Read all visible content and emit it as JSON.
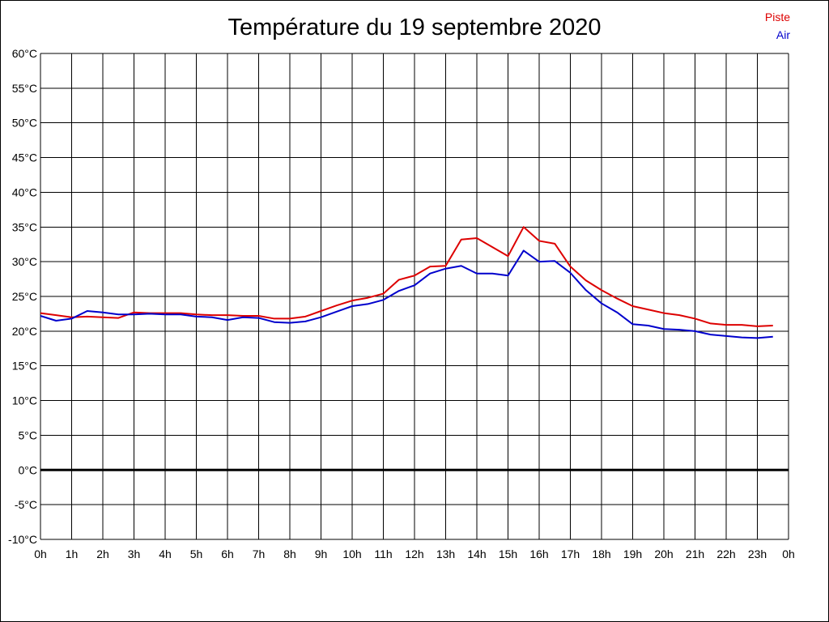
{
  "chart_data": {
    "type": "line",
    "title": "Température du 19 septembre 2020",
    "ylim": [
      -10,
      60
    ],
    "y_ticks": [
      "60°C",
      "55°C",
      "50°C",
      "45°C",
      "40°C",
      "35°C",
      "30°C",
      "25°C",
      "20°C",
      "15°C",
      "10°C",
      "5°C",
      "0°C",
      "-5°C",
      "-10°C"
    ],
    "x_ticks": [
      "0h",
      "1h",
      "2h",
      "3h",
      "4h",
      "5h",
      "6h",
      "7h",
      "8h",
      "9h",
      "10h",
      "11h",
      "12h",
      "13h",
      "14h",
      "15h",
      "16h",
      "17h",
      "18h",
      "19h",
      "20h",
      "21h",
      "22h",
      "23h",
      "0h"
    ],
    "grid": true,
    "legend_placement": "top-right",
    "x_hours": [
      0,
      0.5,
      1,
      1.5,
      2,
      2.5,
      3,
      3.5,
      4,
      4.5,
      5,
      5.5,
      6,
      6.5,
      7,
      7.5,
      8,
      8.5,
      9,
      9.5,
      10,
      10.5,
      11,
      11.5,
      12,
      12.5,
      13,
      13.5,
      14,
      14.5,
      15,
      15.5,
      16,
      16.5,
      17,
      17.5,
      18,
      18.5,
      19,
      19.5,
      20,
      20.5,
      21,
      21.5,
      22,
      22.5,
      23,
      23.5
    ],
    "series": [
      {
        "name": "Piste",
        "color": "#dd0000",
        "values": [
          22.6,
          22.3,
          22.0,
          22.1,
          22.0,
          21.9,
          22.7,
          22.6,
          22.6,
          22.6,
          22.4,
          22.3,
          22.3,
          22.2,
          22.2,
          21.8,
          21.8,
          22.1,
          22.9,
          23.7,
          24.4,
          24.8,
          25.4,
          27.4,
          28.0,
          29.3,
          29.4,
          33.2,
          33.4,
          32.1,
          30.8,
          35.0,
          33.0,
          32.6,
          29.3,
          27.3,
          25.9,
          24.7,
          23.6,
          23.1,
          22.6,
          22.3,
          21.8,
          21.1,
          20.9,
          20.9,
          20.7,
          20.8
        ]
      },
      {
        "name": "Air",
        "color": "#0000cc",
        "values": [
          22.2,
          21.5,
          21.8,
          22.9,
          22.7,
          22.4,
          22.4,
          22.5,
          22.4,
          22.4,
          22.1,
          22.0,
          21.6,
          22.0,
          21.9,
          21.3,
          21.2,
          21.4,
          22.0,
          22.8,
          23.6,
          23.9,
          24.5,
          25.8,
          26.6,
          28.3,
          29.0,
          29.4,
          28.3,
          28.3,
          28.0,
          31.6,
          30.0,
          30.1,
          28.4,
          25.9,
          24.0,
          22.7,
          21.0,
          20.8,
          20.3,
          20.2,
          20.0,
          19.5,
          19.3,
          19.1,
          19.0,
          19.2
        ]
      }
    ]
  }
}
